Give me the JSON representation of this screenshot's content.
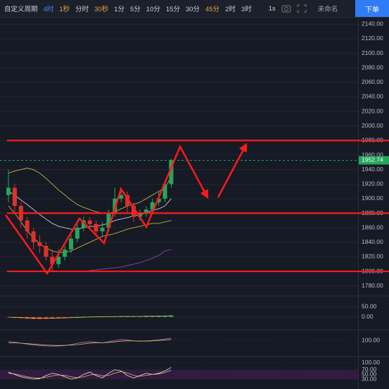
{
  "toolbar": {
    "items": [
      {
        "text": "自定义周期",
        "color": "#c8ccd4"
      },
      {
        "text": "4时",
        "color": "#3d8bff"
      },
      {
        "text": "1秒",
        "color": "#e8a33a"
      },
      {
        "text": "分时",
        "color": "#c8ccd4"
      },
      {
        "text": "30秒",
        "color": "#e8a33a"
      },
      {
        "text": "1分",
        "color": "#c8ccd4"
      },
      {
        "text": "5分",
        "color": "#c8ccd4"
      },
      {
        "text": "10分",
        "color": "#c8ccd4"
      },
      {
        "text": "15分",
        "color": "#c8ccd4"
      },
      {
        "text": "30分",
        "color": "#c8ccd4"
      },
      {
        "text": "45分",
        "color": "#e8a33a"
      },
      {
        "text": "2时",
        "color": "#c8ccd4"
      },
      {
        "text": "3时",
        "color": "#c8ccd4"
      }
    ],
    "speed": "1s",
    "layout_name": "未命名",
    "order_button": "下单"
  },
  "chart_data": {
    "type": "candlestick",
    "up_color": "#26a65b",
    "down_color": "#e0302a",
    "ylim": [
      1770,
      2150
    ],
    "yticks": [
      {
        "value": 2140,
        "label": "2140.00"
      },
      {
        "value": 2120,
        "label": "2120.00"
      },
      {
        "value": 2100,
        "label": "2100.00"
      },
      {
        "value": 2080,
        "label": "2080.00"
      },
      {
        "value": 2060,
        "label": "2060.00"
      },
      {
        "value": 2040,
        "label": "2040.00"
      },
      {
        "value": 2020,
        "label": "2020.00"
      },
      {
        "value": 2000,
        "label": "2000.00"
      },
      {
        "value": 1980,
        "label": "1980.00"
      },
      {
        "value": 1960,
        "label": "1960.00"
      },
      {
        "value": 1940,
        "label": "1940.00"
      },
      {
        "value": 1920,
        "label": "1920.00"
      },
      {
        "value": 1900,
        "label": "1900.00"
      },
      {
        "value": 1880,
        "label": "1880.00"
      },
      {
        "value": 1860,
        "label": "1860.00"
      },
      {
        "value": 1840,
        "label": "1840.00"
      },
      {
        "value": 1820,
        "label": "1820.00"
      },
      {
        "value": 1800,
        "label": "1800.00"
      },
      {
        "value": 1780,
        "label": "1780.00"
      }
    ],
    "last_price": 1952.74,
    "levels": [
      1980,
      1880,
      1800
    ],
    "level_color": "#ff1a1a",
    "open": [
      1905,
      1915,
      1890,
      1870,
      1855,
      1840,
      1835,
      1820,
      1810,
      1820,
      1830,
      1845,
      1860,
      1870,
      1865,
      1855,
      1860,
      1880,
      1900,
      1905,
      1890,
      1875,
      1880,
      1885,
      1895,
      1900,
      1920
    ],
    "close": [
      1915,
      1890,
      1870,
      1855,
      1840,
      1835,
      1820,
      1810,
      1820,
      1830,
      1845,
      1860,
      1870,
      1865,
      1855,
      1860,
      1880,
      1900,
      1905,
      1890,
      1875,
      1880,
      1885,
      1895,
      1900,
      1920,
      1952.74
    ],
    "high": [
      1940,
      1920,
      1895,
      1875,
      1860,
      1850,
      1840,
      1830,
      1830,
      1835,
      1850,
      1865,
      1875,
      1875,
      1870,
      1868,
      1885,
      1915,
      1915,
      1910,
      1895,
      1885,
      1890,
      1900,
      1910,
      1925,
      1955
    ],
    "low": [
      1895,
      1880,
      1860,
      1845,
      1830,
      1825,
      1815,
      1800,
      1805,
      1815,
      1825,
      1840,
      1855,
      1860,
      1850,
      1848,
      1855,
      1875,
      1895,
      1880,
      1868,
      1870,
      1875,
      1880,
      1890,
      1895,
      1915
    ],
    "overlays": [
      {
        "color": "#d9c24a",
        "values": [
          1935,
          1938,
          1940,
          1942,
          1940,
          1935,
          1928,
          1920,
          1912,
          1905,
          1898,
          1892,
          1888,
          1885,
          1882,
          1880,
          1880,
          1882,
          1886,
          1890,
          1892,
          1895,
          1900,
          1905,
          1910,
          1915,
          1930
        ]
      },
      {
        "color": "#e6e6e6",
        "values": [
          1910,
          1905,
          1898,
          1892,
          1885,
          1878,
          1872,
          1866,
          1862,
          1860,
          1858,
          1858,
          1860,
          1862,
          1862,
          1864,
          1866,
          1870,
          1872,
          1874,
          1876,
          1878,
          1880,
          1884,
          1886,
          1890,
          1900
        ]
      },
      {
        "color": "#d9c24a",
        "values": [
          1890,
          1880,
          1868,
          1856,
          1846,
          1838,
          1832,
          1828,
          1826,
          1826,
          1828,
          1832,
          1836,
          1840,
          1844,
          1848,
          1850,
          1852,
          1855,
          1858,
          1860,
          1862,
          1864,
          1866,
          1866,
          1868,
          1870
        ]
      },
      {
        "color": "#a040c8",
        "values": [
          null,
          null,
          null,
          null,
          null,
          null,
          null,
          null,
          null,
          1800,
          1800,
          1800,
          1800,
          1801,
          1802,
          1803,
          1804,
          1805,
          1806,
          1808,
          1810,
          1812,
          1815,
          1818,
          1822,
          1828,
          1830
        ]
      }
    ],
    "panels": [
      {
        "ylim": [
          -55,
          95
        ],
        "yticks": [
          {
            "value": 50,
            "label": "50.00"
          },
          {
            "value": 0,
            "label": "0.00"
          }
        ],
        "bars": [
          -2,
          -4,
          -6,
          -8,
          -10,
          -10,
          -9,
          -8,
          -6,
          -4,
          -2,
          1,
          2,
          2,
          1,
          1,
          2,
          3,
          4,
          3,
          2,
          2,
          3,
          4,
          5,
          6,
          8
        ],
        "series": [
          {
            "color": "#d9c24a",
            "values": [
              -1,
              -2,
              -3,
              -4,
              -5,
              -6,
              -6,
              -6,
              -5,
              -4,
              -3,
              -2,
              -1,
              0,
              1,
              1,
              2,
              2,
              3,
              3,
              3,
              3,
              4,
              4,
              5,
              5,
              6
            ]
          }
        ]
      },
      {
        "ylim": [
          30,
          140
        ],
        "yticks": [
          {
            "value": 100,
            "label": "100.00"
          }
        ],
        "series": [
          {
            "color": "#c060e0",
            "values": [
              95,
              92,
              88,
              84,
              80,
              78,
              76,
              75,
              76,
              78,
              82,
              88,
              92,
              94,
              92,
              90,
              94,
              100,
              104,
              102,
              98,
              96,
              98,
              100,
              103,
              106,
              110
            ]
          },
          {
            "color": "#d9c24a",
            "values": [
              90,
              90,
              88,
              86,
              84,
              82,
              80,
              79,
              78,
              79,
              80,
              82,
              85,
              88,
              90,
              90,
              91,
              94,
              97,
              98,
              98,
              97,
              97,
              98,
              100,
              102,
              104
            ]
          }
        ]
      },
      {
        "ylim": [
          0,
          120
        ],
        "yticks": [
          {
            "value": 100,
            "label": "100.00"
          },
          {
            "value": 70,
            "label": "70.00"
          },
          {
            "value": 50,
            "label": "50.00"
          },
          {
            "value": 30,
            "label": "30.00"
          }
        ],
        "series": [
          {
            "color": "#e6e6e6",
            "values": [
              60,
              50,
              40,
              35,
              30,
              32,
              45,
              55,
              50,
              40,
              30,
              35,
              50,
              60,
              45,
              35,
              55,
              70,
              65,
              45,
              35,
              45,
              55,
              50,
              55,
              65,
              80
            ]
          },
          {
            "color": "#d9c24a",
            "values": [
              55,
              52,
              46,
              40,
              36,
              34,
              38,
              44,
              48,
              46,
              40,
              36,
              40,
              48,
              50,
              44,
              46,
              56,
              62,
              56,
              46,
              42,
              46,
              50,
              52,
              58,
              68
            ]
          }
        ]
      }
    ]
  }
}
